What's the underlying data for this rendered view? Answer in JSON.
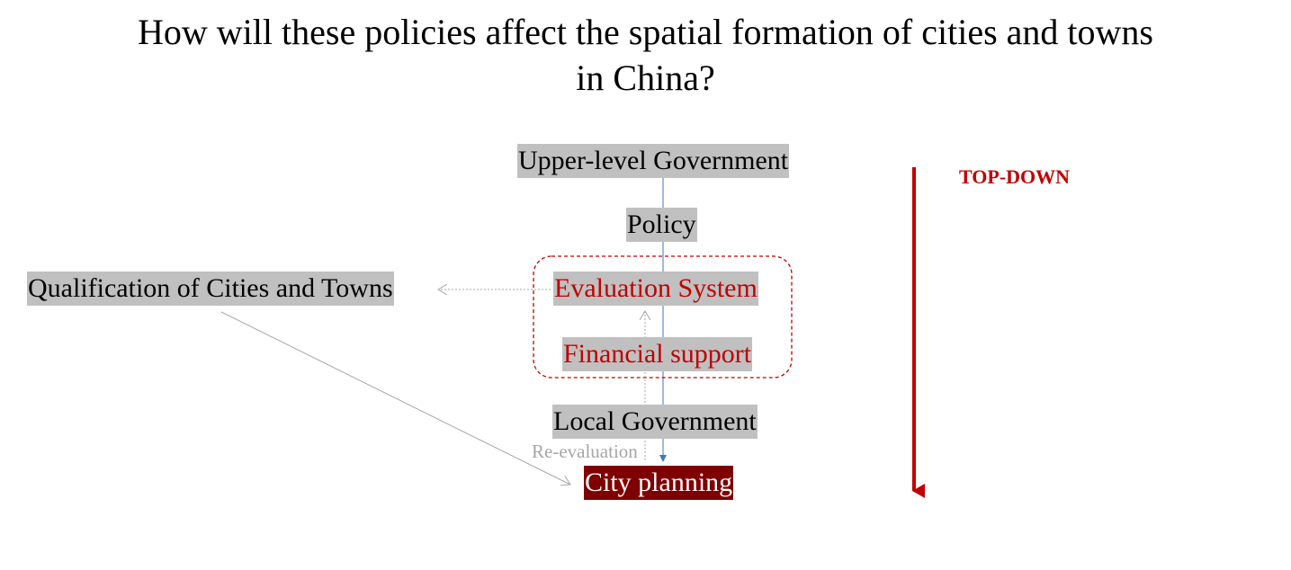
{
  "title": {
    "line1": "How will these policies affect the spatial formation of cities and towns",
    "line2": "in China?"
  },
  "nodes": {
    "upper_government": "Upper-level Government",
    "policy": "Policy",
    "evaluation_system": "Evaluation System",
    "financial_support": "Financial support",
    "local_government": "Local Government",
    "city_planning": "City planning",
    "qualification": "Qualification of Cities and Towns"
  },
  "labels": {
    "re_evaluation": "Re-evaluation",
    "top_down": "TOP-DOWN"
  },
  "colors": {
    "accent_red": "#c00000",
    "dark_red": "#7f0000",
    "node_gray": "#c0c0c0",
    "flow_blue": "#4472c4",
    "connector_gray": "#a6a6a6"
  }
}
